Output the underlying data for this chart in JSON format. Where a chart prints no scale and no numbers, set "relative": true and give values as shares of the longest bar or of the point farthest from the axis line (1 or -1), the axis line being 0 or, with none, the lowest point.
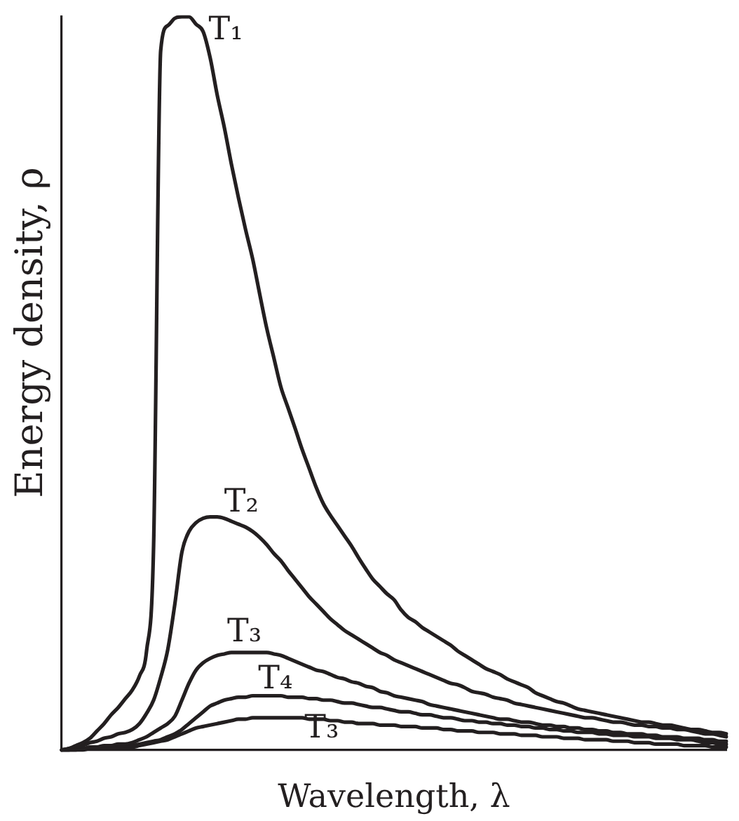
{
  "chart_data": {
    "type": "line",
    "relative": true,
    "xlabel": "Wavelength, λ",
    "ylabel": "Energy density, ρ",
    "categories": [
      null,
      null,
      null,
      null,
      null,
      null,
      null,
      null,
      null,
      null,
      null,
      null,
      null,
      null,
      null,
      null,
      null,
      null,
      null,
      null,
      null,
      null,
      null,
      null,
      null,
      null,
      null,
      null,
      null,
      null,
      null,
      null,
      null,
      null,
      null,
      null,
      null,
      null,
      null,
      null,
      null,
      null,
      null,
      null,
      null,
      null,
      null,
      null,
      null,
      null,
      null,
      null,
      null,
      null,
      null,
      null,
      null,
      null,
      null,
      null,
      null,
      null,
      null,
      null,
      null,
      null,
      null,
      null,
      null,
      null,
      null,
      null,
      null,
      null,
      null,
      null,
      null,
      null,
      null,
      null,
      null,
      null,
      null,
      null,
      null,
      null,
      null,
      null,
      null,
      null,
      null,
      null,
      null,
      null,
      null
    ],
    "series": [
      {
        "name": "T₁",
        "color": "#231f20",
        "values": [
          0,
          0.002,
          0.006,
          0.01,
          0.016,
          0.026,
          0.036,
          0.048,
          0.058,
          0.07,
          0.082,
          0.101,
          0.135,
          0.28,
          0.954,
          0.988,
          0.998,
          1,
          1,
          0.99,
          0.98,
          0.944,
          0.893,
          0.849,
          0.799,
          0.753,
          0.71,
          0.67,
          0.622,
          0.575,
          0.535,
          0.495,
          0.467,
          0.439,
          0.41,
          0.384,
          0.358,
          0.336,
          0.32,
          0.306,
          0.292,
          0.278,
          0.262,
          0.247,
          0.233,
          0.223,
          0.213,
          0.205,
          0.191,
          0.181,
          0.175,
          0.167,
          0.161,
          0.155,
          0.149,
          0.143,
          0.135,
          0.129,
          0.123,
          0.117,
          0.111,
          0.107,
          0.103,
          0.097,
          0.093,
          0.089,
          0.085,
          0.078,
          0.074,
          0.07,
          0.066,
          0.064,
          0.06,
          0.056,
          0.054,
          0.052,
          0.05,
          0.048,
          0.046,
          0.044,
          0.042,
          0.04,
          0.038,
          0.038,
          0.036,
          0.034,
          0.034,
          0.032,
          0.03,
          0.028,
          0.028,
          0.026,
          0.024,
          0.024,
          0.022
        ]
      },
      {
        "name": "T₂",
        "color": "#231f20",
        "values": [
          0,
          0.002,
          0.004,
          0.006,
          0.01,
          0.012,
          0.016,
          0.018,
          0.022,
          0.024,
          0.028,
          0.036,
          0.05,
          0.068,
          0.099,
          0.137,
          0.199,
          0.27,
          0.298,
          0.31,
          0.316,
          0.318,
          0.318,
          0.316,
          0.312,
          0.308,
          0.304,
          0.298,
          0.29,
          0.28,
          0.268,
          0.258,
          0.245,
          0.233,
          0.221,
          0.209,
          0.199,
          0.189,
          0.179,
          0.171,
          0.163,
          0.157,
          0.151,
          0.145,
          0.139,
          0.133,
          0.129,
          0.123,
          0.119,
          0.115,
          0.111,
          0.107,
          0.103,
          0.099,
          0.095,
          0.091,
          0.089,
          0.085,
          0.08,
          0.078,
          0.076,
          0.072,
          0.07,
          0.068,
          0.064,
          0.062,
          0.06,
          0.058,
          0.056,
          0.054,
          0.052,
          0.05,
          0.048,
          0.046,
          0.044,
          0.044,
          0.042,
          0.04,
          0.038,
          0.038,
          0.036,
          0.034,
          0.034,
          0.032,
          0.032,
          0.03,
          0.03,
          0.028,
          0.028,
          0.026,
          0.024,
          0.022,
          0.022,
          0.02,
          0.018
        ]
      },
      {
        "name": "T₃",
        "color": "#231f20",
        "values": [
          0,
          0,
          0.002,
          0.002,
          0.004,
          0.004,
          0.006,
          0.006,
          0.008,
          0.008,
          0.01,
          0.014,
          0.018,
          0.024,
          0.03,
          0.036,
          0.046,
          0.068,
          0.091,
          0.109,
          0.119,
          0.125,
          0.129,
          0.131,
          0.133,
          0.133,
          0.133,
          0.133,
          0.133,
          0.133,
          0.131,
          0.129,
          0.125,
          0.121,
          0.117,
          0.113,
          0.109,
          0.107,
          0.103,
          0.099,
          0.097,
          0.093,
          0.091,
          0.087,
          0.085,
          0.08,
          0.078,
          0.074,
          0.072,
          0.07,
          0.068,
          0.066,
          0.062,
          0.06,
          0.058,
          0.056,
          0.054,
          0.052,
          0.05,
          0.048,
          0.046,
          0.044,
          0.042,
          0.042,
          0.04,
          0.038,
          0.038,
          0.036,
          0.034,
          0.034,
          0.032,
          0.032,
          0.03,
          0.03,
          0.028,
          0.028,
          0.026,
          0.026,
          0.024,
          0.024,
          0.022,
          0.022,
          0.022,
          0.02,
          0.02,
          0.018,
          0.018,
          0.018,
          0.016,
          0.016,
          0.016,
          0.014,
          0.014,
          0.012,
          0.012
        ]
      },
      {
        "name": "T₄",
        "color": "#231f20",
        "values": [
          0,
          0,
          0,
          0.002,
          0.002,
          0.002,
          0.004,
          0.004,
          0.004,
          0.006,
          0.006,
          0.008,
          0.01,
          0.012,
          0.014,
          0.018,
          0.022,
          0.028,
          0.036,
          0.044,
          0.052,
          0.06,
          0.064,
          0.068,
          0.07,
          0.072,
          0.072,
          0.074,
          0.074,
          0.074,
          0.074,
          0.074,
          0.072,
          0.072,
          0.072,
          0.07,
          0.07,
          0.068,
          0.068,
          0.066,
          0.064,
          0.064,
          0.062,
          0.06,
          0.058,
          0.058,
          0.056,
          0.054,
          0.052,
          0.052,
          0.05,
          0.048,
          0.048,
          0.046,
          0.044,
          0.044,
          0.042,
          0.04,
          0.04,
          0.038,
          0.038,
          0.036,
          0.036,
          0.034,
          0.034,
          0.032,
          0.032,
          0.03,
          0.03,
          0.028,
          0.028,
          0.026,
          0.026,
          0.024,
          0.024,
          0.024,
          0.022,
          0.022,
          0.02,
          0.02,
          0.02,
          0.018,
          0.018,
          0.018,
          0.016,
          0.016,
          0.016,
          0.014,
          0.014,
          0.014,
          0.012,
          0.01,
          0.01,
          0.008,
          0.008
        ]
      },
      {
        "name": "T₃",
        "color": "#231f20",
        "values": [
          0,
          0,
          0,
          0,
          0.002,
          0.002,
          0.002,
          0.002,
          0.004,
          0.004,
          0.004,
          0.006,
          0.008,
          0.01,
          0.012,
          0.014,
          0.018,
          0.022,
          0.026,
          0.03,
          0.032,
          0.034,
          0.036,
          0.038,
          0.04,
          0.042,
          0.042,
          0.044,
          0.044,
          0.044,
          0.044,
          0.044,
          0.044,
          0.044,
          0.044,
          0.042,
          0.042,
          0.042,
          0.04,
          0.04,
          0.038,
          0.038,
          0.036,
          0.036,
          0.036,
          0.034,
          0.034,
          0.034,
          0.032,
          0.032,
          0.032,
          0.03,
          0.03,
          0.03,
          0.028,
          0.028,
          0.026,
          0.026,
          0.026,
          0.024,
          0.024,
          0.024,
          0.022,
          0.022,
          0.022,
          0.02,
          0.02,
          0.02,
          0.018,
          0.018,
          0.018,
          0.016,
          0.016,
          0.016,
          0.014,
          0.014,
          0.014,
          0.014,
          0.012,
          0.012,
          0.012,
          0.01,
          0.01,
          0.01,
          0.008,
          0.008,
          0.008,
          0.008,
          0.006,
          0.006,
          0.006,
          0.006,
          0.004,
          0.004,
          0.004
        ]
      }
    ]
  }
}
